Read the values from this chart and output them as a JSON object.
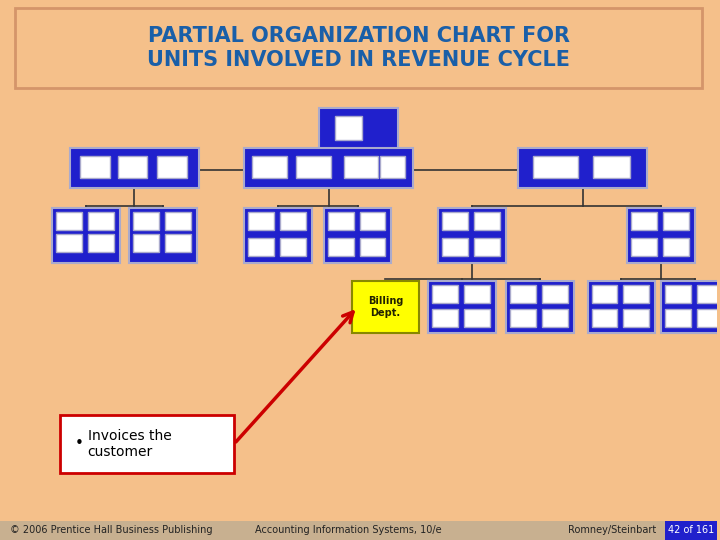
{
  "bg_color": "#f5c08a",
  "box_blue": "#2020cc",
  "box_white": "#ffffff",
  "box_yellow": "#ffff00",
  "title_text": "PARTIAL ORGANIZATION CHART FOR\nUNITS INVOLVED IN REVENUE CYCLE",
  "title_color": "#1a5fa8",
  "title_bg": "#f5c08a",
  "title_border": "#d4956a",
  "footer_bg": "#c8a878",
  "footer_texts": [
    "© 2006 Prentice Hall Business Publishing",
    "Accounting Information Systems, 10/e",
    "Romney/Steinbart"
  ],
  "page_label": "42 of 161",
  "page_label_bg": "#2020cc",
  "page_label_color": "#ffffff",
  "annotation_text": "Invoices the\ncustomer",
  "billing_text": "Billing\nDept.",
  "arrow_color": "#cc0000"
}
